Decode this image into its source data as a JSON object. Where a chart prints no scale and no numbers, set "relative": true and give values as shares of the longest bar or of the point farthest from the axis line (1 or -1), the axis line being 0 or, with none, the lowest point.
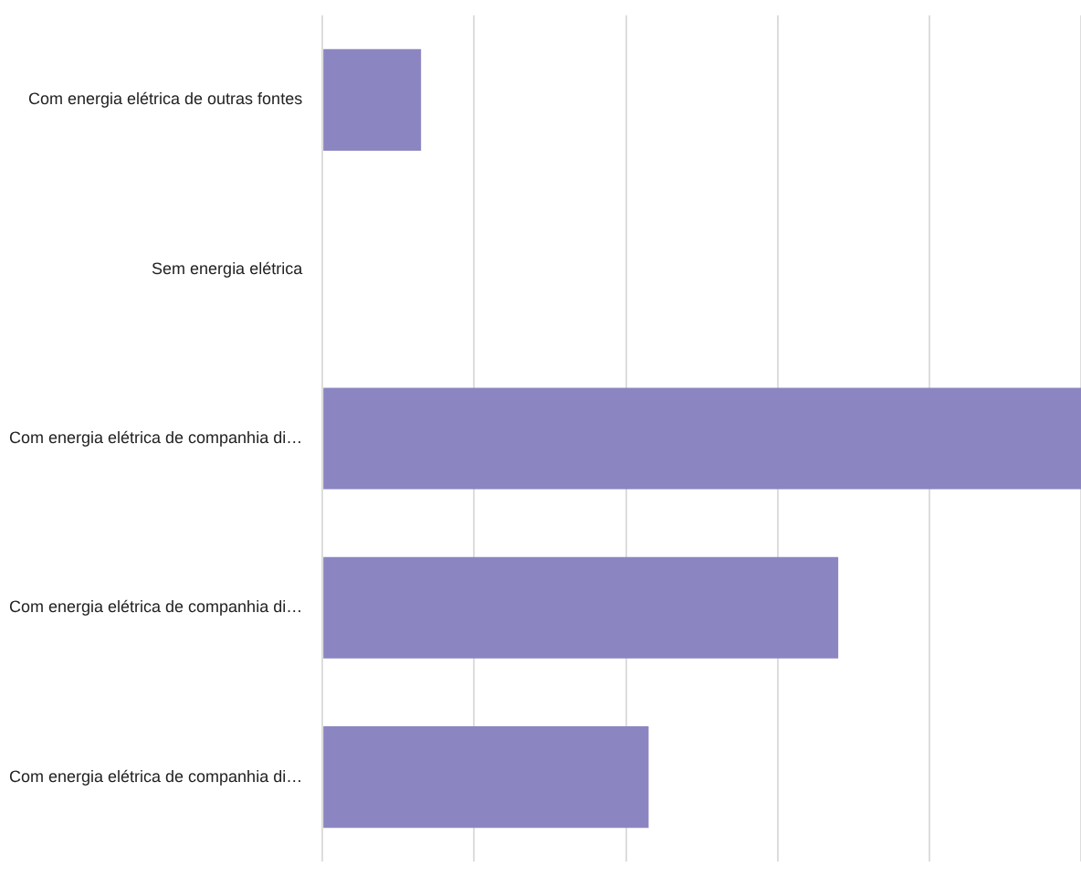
{
  "chart_data": {
    "type": "bar",
    "orientation": "horizontal",
    "relative": true,
    "grid": "x",
    "categories": [
      "Com energia elétrica de outras fontes",
      "Sem energia elétrica",
      "Com energia elétrica de companhia di…",
      "Com energia elétrica de companhia di…",
      "Com energia elétrica de companhia di…"
    ],
    "values": [
      0.13,
      0,
      1,
      0.68,
      0.43
    ],
    "color": "#8b86c2"
  }
}
